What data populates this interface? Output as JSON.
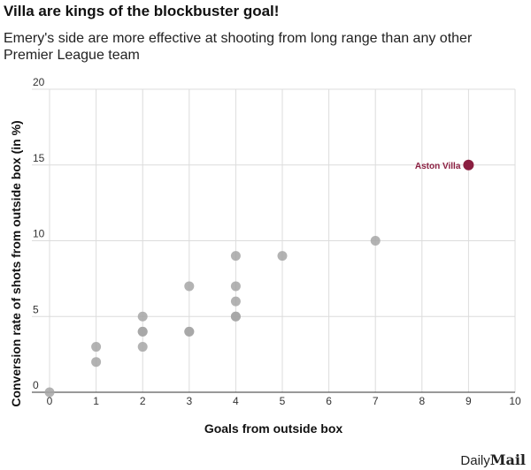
{
  "chart_data": {
    "type": "scatter",
    "title": "Villa are kings of the blockbuster goal!",
    "subtitle": "Emery's side are more effective at shooting from long range than any other Premier League team",
    "xlabel": "Goals from outside box",
    "ylabel": "Conversion rate of shots from outside box (in %)",
    "xlim": [
      0,
      10
    ],
    "ylim": [
      0,
      20
    ],
    "xticks": [
      "0",
      "1",
      "2",
      "3",
      "4",
      "5",
      "6",
      "7",
      "8",
      "9",
      "10"
    ],
    "yticks": [
      "0",
      "5",
      "10",
      "15",
      "20"
    ],
    "grid": true,
    "points": [
      {
        "x": 0,
        "y": 0
      },
      {
        "x": 1,
        "y": 2
      },
      {
        "x": 1,
        "y": 3
      },
      {
        "x": 2,
        "y": 3
      },
      {
        "x": 2,
        "y": 4
      },
      {
        "x": 2,
        "y": 4
      },
      {
        "x": 2,
        "y": 5
      },
      {
        "x": 3,
        "y": 4
      },
      {
        "x": 3,
        "y": 4
      },
      {
        "x": 3,
        "y": 7
      },
      {
        "x": 4,
        "y": 5
      },
      {
        "x": 4,
        "y": 5
      },
      {
        "x": 4,
        "y": 6
      },
      {
        "x": 4,
        "y": 7
      },
      {
        "x": 4,
        "y": 9
      },
      {
        "x": 5,
        "y": 9
      },
      {
        "x": 7,
        "y": 10
      }
    ],
    "highlight": {
      "label": "Aston Villa",
      "x": 9,
      "y": 15,
      "color": "#8b1f41"
    },
    "point_color": "#a6a6a6"
  },
  "brand": {
    "part1": "Daily",
    "part2": "Mail"
  }
}
